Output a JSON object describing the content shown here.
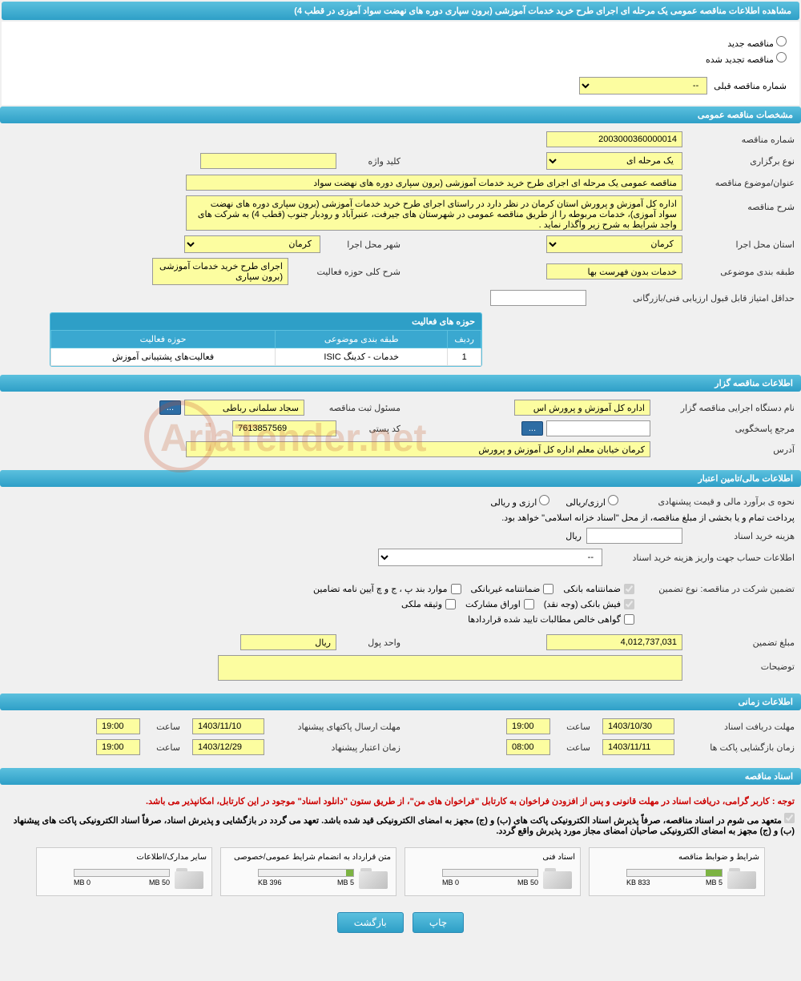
{
  "page_title": "مشاهده اطلاعات مناقصه عمومی یک مرحله ای اجرای طرح خرید خدمات آموزشی (برون سپاری دوره های نهضت سواد آموزی در قطب 4)",
  "radio_options": {
    "new_tender": "مناقصه جدید",
    "renewed_tender": "مناقصه تجدید شده"
  },
  "prev_tender_label": "شماره مناقصه قبلی",
  "prev_tender_value": "--",
  "sections": {
    "general": "مشخصات مناقصه عمومی",
    "organizer": "اطلاعات مناقصه گزار",
    "financial": "اطلاعات مالی/تامین اعتبار",
    "timing": "اطلاعات زمانی",
    "documents": "اسناد مناقصه"
  },
  "general": {
    "tender_no_label": "شماره مناقصه",
    "tender_no": "2003000360000014",
    "type_label": "نوع برگزاری",
    "type_value": "یک مرحله ای",
    "keyword_label": "کلید واژه",
    "keyword_value": "",
    "subject_label": "عنوان/موضوع مناقصه",
    "subject_value": "مناقصه عمومی یک مرحله ای اجرای طرح خرید خدمات آموزشی (برون سپاری دوره های نهضت سواد",
    "desc_label": "شرح مناقصه",
    "desc_value": "اداره کل آموزش و پرورش استان کرمان در نظر دارد در راستای اجرای طرح خرید خدمات آموزشی (برون سپاری دوره های نهضت سواد آموزی)، خدمات مربوطه را از طریق مناقصه عمومی در شهرستان های جیرفت، عنبرآباد و رودبار جنوب (قطب 4) به شرکت های واجد شرایط به شرح زیر واگذار نماید .",
    "province_label": "استان محل اجرا",
    "province_value": "کرمان",
    "city_label": "شهر محل اجرا",
    "city_value": "کرمان",
    "category_label": "طبقه بندی موضوعی",
    "category_value": "خدمات بدون فهرست بها",
    "activity_desc_label": "شرح کلی حوزه فعالیت",
    "activity_desc_value": "اجرای طرح خرید خدمات آموزشی (برون سپاری",
    "min_score_label": "حداقل امتیاز قابل قبول ارزیابی فنی/بازرگانی",
    "min_score_value": ""
  },
  "activity_table": {
    "title": "حوزه های فعالیت",
    "col_row": "ردیف",
    "col_category": "طبقه بندی موضوعی",
    "col_activity": "حوزه فعالیت",
    "rows": [
      {
        "n": "1",
        "category": "خدمات - کدینگ ISIC",
        "activity": "فعالیت‌های پشتیبانی آموزش"
      }
    ]
  },
  "organizer": {
    "org_label": "نام دستگاه اجرایی مناقصه گزار",
    "org_value": "اداره کل آموزش و پرورش اس",
    "registrar_label": "مسئول ثبت مناقصه",
    "registrar_value": "سجاد سلمانی رباطی",
    "responder_label": "مرجع پاسخگویی",
    "responder_value": "",
    "postal_label": "کد پستی",
    "postal_value": "7613857569",
    "address_label": "آدرس",
    "address_value": "کرمان خیابان معلم اداره کل آموزش و پرورش"
  },
  "financial": {
    "estimate_label": "نحوه ی برآورد مالی و قیمت پیشنهادی",
    "currency_fx": "ارزی/ریالی",
    "currency_local": "ارزی و ریالی",
    "treasury_note": "پرداخت تمام و یا بخشی از مبلغ مناقصه، از محل \"اسناد خزانه اسلامی\" خواهد بود.",
    "doc_cost_label": "هزینه خرید اسناد",
    "doc_cost_value": "",
    "rial_label": "ریال",
    "account_info_label": "اطلاعات حساب جهت واریز هزینه خرید اسناد",
    "account_info_value": "--",
    "guarantee_title": "تضمین شرکت در مناقصه:   نوع تضمین",
    "guarantee_types": {
      "bank": "ضمانتنامه بانکی",
      "nonbank": "ضمانتنامه غیربانکی",
      "clauses": "موارد بند پ ، ج و چ آیین نامه تضامین",
      "cash": "فیش بانکی (وجه نقد)",
      "bonds": "اوراق مشارکت",
      "property": "وثیقه ملکی",
      "certificate": "گواهی خالص مطالبات تایید شده قراردادها"
    },
    "guarantee_amount_label": "مبلغ تضمین",
    "guarantee_amount": "4,012,737,031",
    "currency_unit_label": "واحد پول",
    "currency_unit": "ریال",
    "notes_label": "توضیحات",
    "notes_value": ""
  },
  "timing": {
    "receive_label": "مهلت دریافت اسناد",
    "receive_date": "1403/10/30",
    "receive_time": "19:00",
    "time_label": "ساعت",
    "submit_label": "مهلت ارسال پاکتهای پیشنهاد",
    "submit_date": "1403/11/10",
    "submit_time": "19:00",
    "open_label": "زمان بازگشایی پاکت ها",
    "open_date": "1403/11/11",
    "open_time": "08:00",
    "validity_label": "زمان اعتبار پیشنهاد",
    "validity_date": "1403/12/29",
    "validity_time": "19:00"
  },
  "documents": {
    "notice1": "توجه : کاربر گرامی، دریافت اسناد در مهلت قانونی و پس از افزودن فراخوان به کارتابل \"فراخوان های من\"، از طریق ستون \"دانلود اسناد\" موجود در این کارتابل، امکانپذیر می باشد.",
    "notice2": "متعهد می شوم در اسناد مناقصه، صرفاً پذیرش اسناد الکترونیکی پاکت های (ب) و (ج) مجهز به امضای الکترونیکی قید شده باشد. تعهد می گردد در بازگشایی و پذیرش اسناد، صرفاً اسناد الکترونیکی پاکت های پیشنهاد (ب) و (ج) مجهز به امضای الکترونیکی صاحبان امضای مجاز مورد پذیرش واقع گردد.",
    "cards": [
      {
        "title": "شرایط و ضوابط مناقصه",
        "used": "833 KB",
        "total": "5 MB",
        "pct": 17
      },
      {
        "title": "اسناد فنی",
        "used": "0 MB",
        "total": "50 MB",
        "pct": 0
      },
      {
        "title": "متن قرارداد به انضمام شرایط عمومی/خصوصی",
        "used": "396 KB",
        "total": "5 MB",
        "pct": 8
      },
      {
        "title": "سایر مدارک/اطلاعات",
        "used": "0 MB",
        "total": "50 MB",
        "pct": 0
      }
    ]
  },
  "buttons": {
    "print": "چاپ",
    "back": "بازگشت"
  },
  "watermark": "AriaTender.net",
  "ellipsis": "..."
}
